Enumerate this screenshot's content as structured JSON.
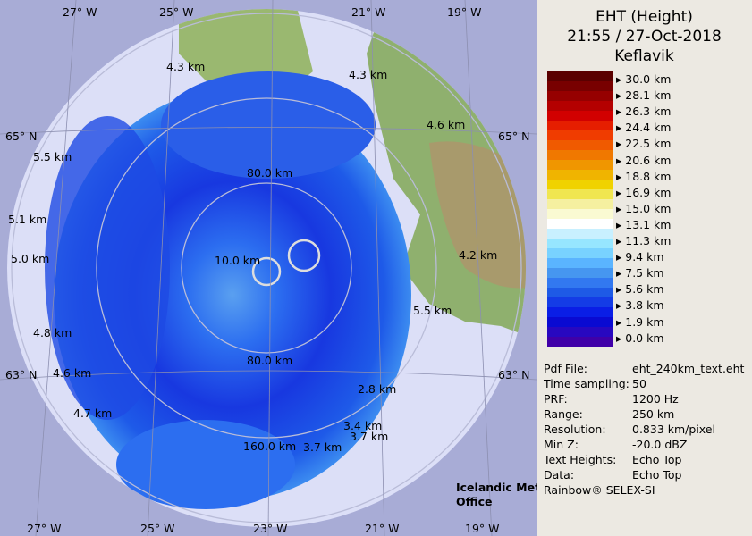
{
  "header": {
    "title": "EHT (Height)",
    "time": "21:55 / 27-Oct-2018",
    "site": "Keflavik"
  },
  "legend": {
    "labels": [
      "30.0 km",
      "28.1 km",
      "26.3 km",
      "24.4 km",
      "22.5 km",
      "20.6 km",
      "18.8 km",
      "16.9 km",
      "15.0 km",
      "13.1 km",
      "11.3 km",
      "9.4 km",
      "7.5 km",
      "5.6 km",
      "3.8 km",
      "1.9 km",
      "0.0 km"
    ]
  },
  "info": {
    "rows": [
      [
        "Pdf File:",
        "eht_240km_text.eht"
      ],
      [
        "Time sampling:",
        "50"
      ],
      [
        "PRF:",
        "1200 Hz"
      ],
      [
        "Range:",
        "250 km"
      ],
      [
        "Resolution:",
        "0.833 km/pixel"
      ],
      [
        "Min Z:",
        "-20.0 dBZ"
      ],
      [
        "Text Heights:",
        "Echo Top"
      ],
      [
        "Data:",
        "Echo Top"
      ]
    ],
    "footer": "Rainbow® SELEX-SI"
  },
  "map": {
    "lon_top": [
      "27° W",
      "25° W",
      "21° W",
      "19° W"
    ],
    "lon_bottom": [
      "27° W",
      "25° W",
      "23° W",
      "21° W",
      "19° W"
    ],
    "lat": [
      "65° N",
      "65° N",
      "63° N",
      "63° N"
    ],
    "rings": [
      "10.0 km",
      "80.0 km",
      "80.0 km",
      "160.0 km"
    ],
    "heights": [
      "4.3 km",
      "4.3 km",
      "4.6 km",
      "5.5 km",
      "5.1 km",
      "5.0 km",
      "4.8 km",
      "4.6 km",
      "4.7 km",
      "4.2 km",
      "5.5 km",
      "2.8 km",
      "3.4 km",
      "3.7 km",
      "3.7 km"
    ],
    "logo": [
      "Icelandic Met",
      "Office"
    ]
  }
}
